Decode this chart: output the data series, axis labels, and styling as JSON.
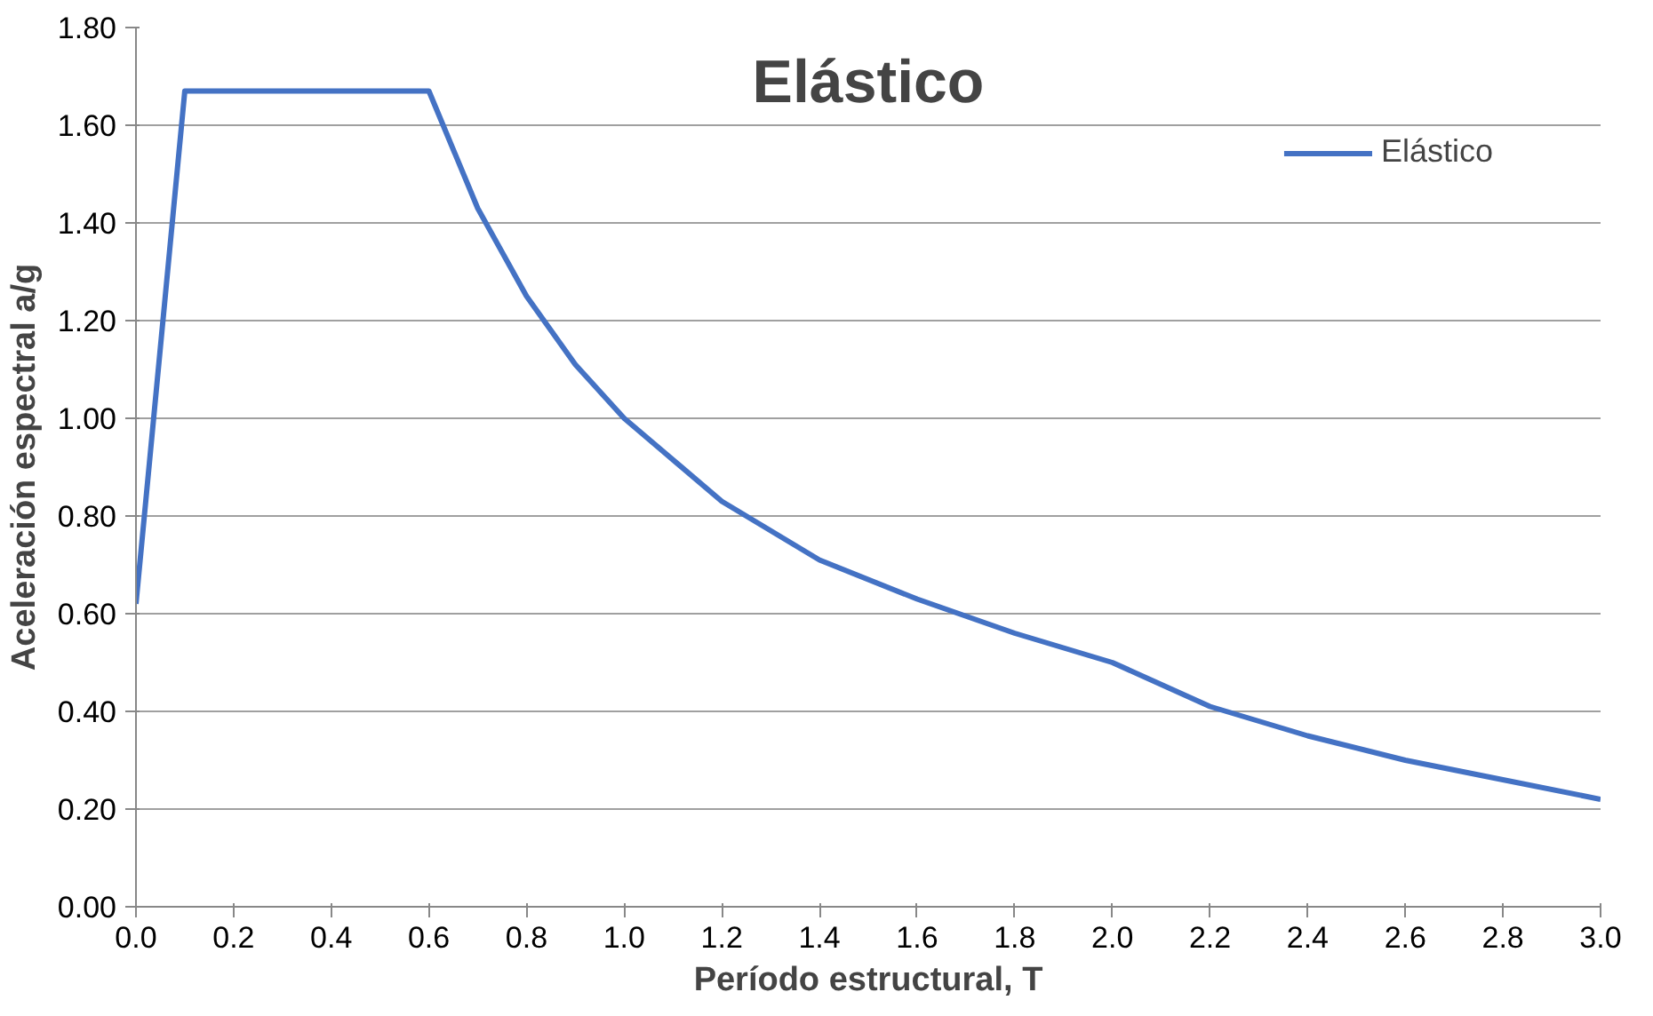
{
  "chart_data": {
    "type": "line",
    "title": "Elástico",
    "xlabel": "Período estructural, T",
    "ylabel": "Aceleración espectral a/g",
    "x": [
      0.0,
      0.1,
      0.6,
      0.7,
      0.8,
      0.9,
      1.0,
      1.2,
      1.4,
      1.6,
      1.8,
      2.0,
      2.2,
      2.4,
      2.6,
      2.8,
      3.0
    ],
    "series": [
      {
        "name": "Elástico",
        "color": "#4472c4",
        "values": [
          0.62,
          1.67,
          1.67,
          1.43,
          1.25,
          1.11,
          1.0,
          0.83,
          0.71,
          0.63,
          0.56,
          0.5,
          0.41,
          0.35,
          0.3,
          0.26,
          0.22
        ]
      }
    ],
    "xlim": [
      0.0,
      3.0
    ],
    "xticks": [
      {
        "value": 0,
        "label": "0.0"
      },
      0.2,
      0.4,
      0.6,
      0.8,
      {
        "value": 1,
        "label": "1.0"
      },
      1.2,
      1.4,
      1.6,
      1.8,
      {
        "value": 2,
        "label": "2.0"
      },
      2.2,
      2.4,
      2.6,
      2.8,
      {
        "value": 3,
        "label": "3.0"
      }
    ],
    "ylim": [
      0,
      1.8
    ],
    "yticks": [
      {
        "value": 0,
        "label": "0.00"
      },
      {
        "value": 0.2,
        "label": "0.20"
      },
      {
        "value": 0.4,
        "label": "0.40"
      },
      {
        "value": 0.6,
        "label": "0.60"
      },
      {
        "value": 0.8,
        "label": "0.80"
      },
      {
        "value": 1,
        "label": "1.00"
      },
      {
        "value": 1.2,
        "label": "1.20"
      },
      {
        "value": 1.4,
        "label": "1.40"
      },
      {
        "value": 1.6,
        "label": "1.60"
      },
      {
        "value": 1.8,
        "label": "1.80"
      }
    ],
    "grid": "y",
    "legend": "top right",
    "marker": "none",
    "line_style": "solid"
  }
}
